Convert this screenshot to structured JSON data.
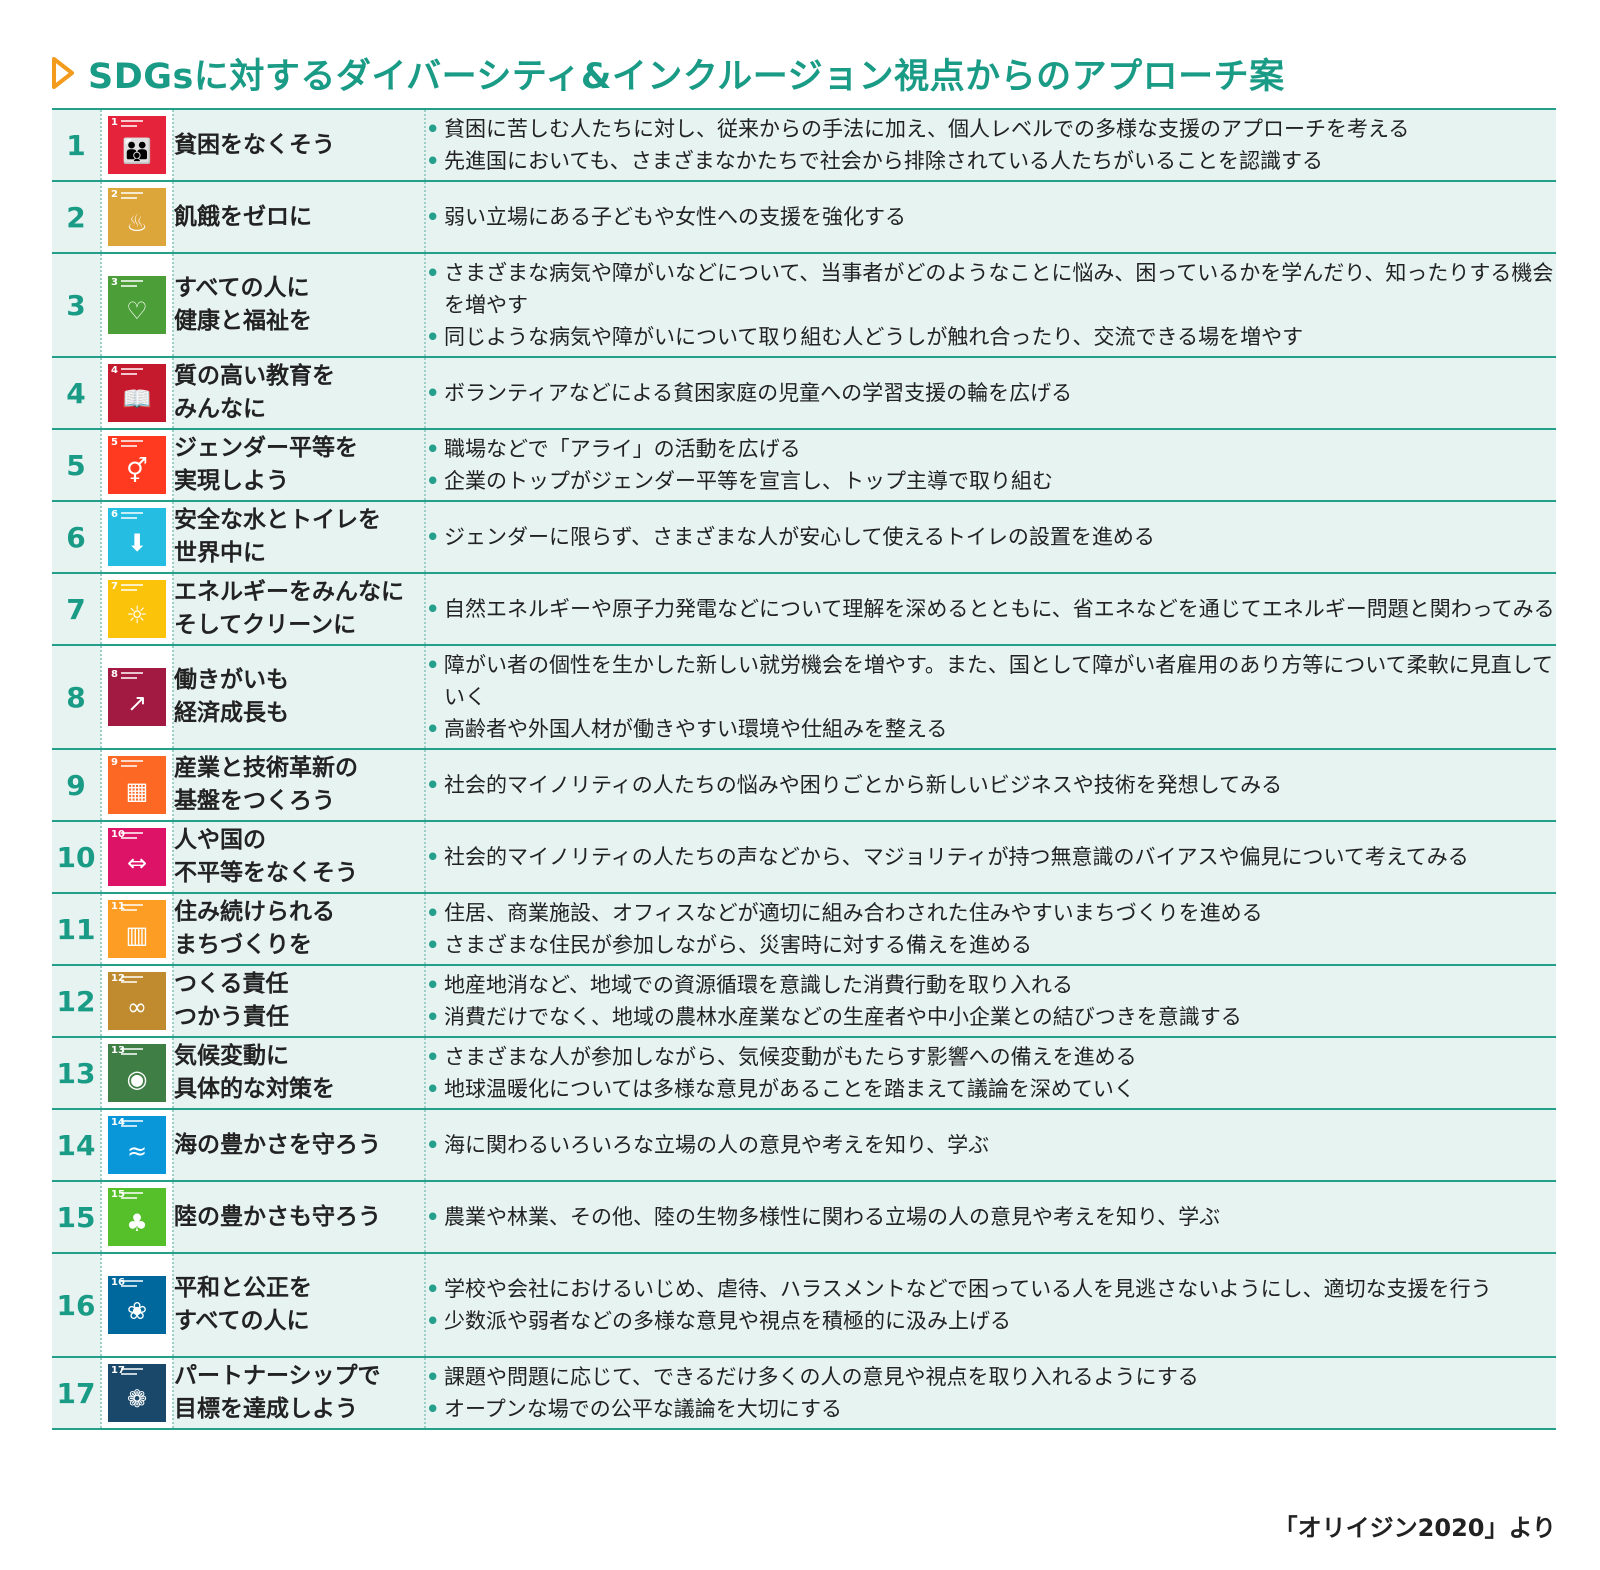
{
  "title": "SDGsに対するダイバーシティ&インクルージョン視点からのアプローチ案",
  "source": "「オリイジン2020」より",
  "goals": [
    {
      "num": "1",
      "name": [
        "貧困をなくそう"
      ],
      "color": "#e5243b",
      "icon": "people-icon",
      "points": [
        "貧困に苦しむ人たちに対し、従来からの手法に加え、個人レベルでの多様な支援のアプローチを考える",
        "先進国においても、さまざまなかたちで社会から排除されている人たちがいることを認識する"
      ]
    },
    {
      "num": "2",
      "name": [
        "飢餓をゼロに"
      ],
      "color": "#dda63a",
      "icon": "bowl-icon",
      "points": [
        "弱い立場にある子どもや女性への支援を強化する"
      ]
    },
    {
      "num": "3",
      "name": [
        "すべての人に",
        "健康と福祉を"
      ],
      "color": "#4c9f38",
      "icon": "heartbeat-icon",
      "points": [
        "さまざまな病気や障がいなどについて、当事者がどのようなことに悩み、困っているかを学んだり、知ったりする機会を増やす",
        "同じような病気や障がいについて取り組む人どうしが触れ合ったり、交流できる場を増やす"
      ]
    },
    {
      "num": "4",
      "name": [
        "質の高い教育を",
        "みんなに"
      ],
      "color": "#c5192d",
      "icon": "book-icon",
      "points": [
        "ボランティアなどによる貧困家庭の児童への学習支援の輪を広げる"
      ]
    },
    {
      "num": "5",
      "name": [
        "ジェンダー平等を",
        "実現しよう"
      ],
      "color": "#ff3a21",
      "icon": "gender-icon",
      "points": [
        "職場などで「アライ」の活動を広げる",
        "企業のトップがジェンダー平等を宣言し、トップ主導で取り組む"
      ]
    },
    {
      "num": "6",
      "name": [
        "安全な水とトイレを",
        "世界中に"
      ],
      "color": "#26bde2",
      "icon": "water-icon",
      "points": [
        "ジェンダーに限らず、さまざまな人が安心して使えるトイレの設置を進める"
      ]
    },
    {
      "num": "7",
      "name": [
        "エネルギーをみんなに",
        "そしてクリーンに"
      ],
      "color": "#fcc30b",
      "icon": "sun-icon",
      "points": [
        "自然エネルギーや原子力発電などについて理解を深めるとともに、省エネなどを通じてエネルギー問題と関わってみる"
      ]
    },
    {
      "num": "8",
      "name": [
        "働きがいも",
        "経済成長も"
      ],
      "color": "#a21942",
      "icon": "growth-chart-icon",
      "points": [
        "障がい者の個性を生かした新しい就労機会を増やす。また、国として障がい者雇用のあり方等について柔軟に見直していく",
        "高齢者や外国人材が働きやすい環境や仕組みを整える"
      ]
    },
    {
      "num": "9",
      "name": [
        "産業と技術革新の",
        "基盤をつくろう"
      ],
      "color": "#fd6925",
      "icon": "cubes-icon",
      "points": [
        "社会的マイノリティの人たちの悩みや困りごとから新しいビジネスや技術を発想してみる"
      ]
    },
    {
      "num": "10",
      "name": [
        "人や国の",
        "不平等をなくそう"
      ],
      "color": "#dd1367",
      "icon": "equality-icon",
      "points": [
        "社会的マイノリティの人たちの声などから、マジョリティが持つ無意識のバイアスや偏見について考えてみる"
      ]
    },
    {
      "num": "11",
      "name": [
        "住み続けられる",
        "まちづくりを"
      ],
      "color": "#fd9d24",
      "icon": "city-icon",
      "points": [
        "住居、商業施設、オフィスなどが適切に組み合わされた住みやすいまちづくりを進める",
        "さまざまな住民が参加しながら、災害時に対する備えを進める"
      ]
    },
    {
      "num": "12",
      "name": [
        "つくる責任",
        "つかう責任"
      ],
      "color": "#bf8b2e",
      "icon": "infinity-icon",
      "points": [
        "地産地消など、地域での資源循環を意識した消費行動を取り入れる",
        "消費だけでなく、地域の農林水産業などの生産者や中小企業との結びつきを意識する"
      ]
    },
    {
      "num": "13",
      "name": [
        "気候変動に",
        "具体的な対策を"
      ],
      "color": "#3f7e44",
      "icon": "eye-globe-icon",
      "points": [
        "さまざまな人が参加しながら、気候変動がもたらす影響への備えを進める",
        "地球温暖化については多様な意見があることを踏まえて議論を深めていく"
      ]
    },
    {
      "num": "14",
      "name": [
        "海の豊かさを守ろう"
      ],
      "color": "#0a97d9",
      "icon": "fish-icon",
      "points": [
        "海に関わるいろいろな立場の人の意見や考えを知り、学ぶ"
      ]
    },
    {
      "num": "15",
      "name": [
        "陸の豊かさも守ろう"
      ],
      "color": "#56c02b",
      "icon": "tree-icon",
      "points": [
        "農業や林業、その他、陸の生物多様性に関わる立場の人の意見や考えを知り、学ぶ"
      ]
    },
    {
      "num": "16",
      "name": [
        "平和と公正を",
        "すべての人に"
      ],
      "color": "#00689d",
      "icon": "dove-icon",
      "points": [
        "学校や会社におけるいじめ、虐待、ハラスメントなどで困っている人を見逃さないようにし、適切な支援を行う",
        "少数派や弱者などの多様な意見や視点を積極的に汲み上げる"
      ]
    },
    {
      "num": "17",
      "name": [
        "パートナーシップで",
        "目標を達成しよう"
      ],
      "color": "#19486a",
      "icon": "partnership-icon",
      "points": [
        "課題や問題に応じて、できるだけ多くの人の意見や視点を取り入れるようにする",
        "オープンな場での公平な議論を大切にする"
      ]
    }
  ]
}
